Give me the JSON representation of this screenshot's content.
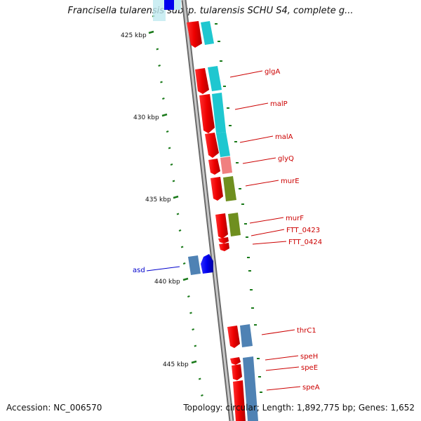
{
  "title": "Francisella tularensis subsp. tularensis SCHU S4, complete g...",
  "footer": {
    "accession": "Accession: NC_006570",
    "topology": "Topology: circular; Length: 1,892,775 bp; Genes: 1,652"
  },
  "colors": {
    "backbone": "#8a8a8a",
    "tick": "#1a7a1a",
    "cds_forward": "#ee0000",
    "cds_reverse": "#0000ee",
    "label_forward": "#cc0000",
    "label_reverse": "#0000cc",
    "cog_cyan": "#1fc7d0",
    "cog_light_cyan": "#bfeaf0",
    "cog_pink": "#f08080",
    "cog_olive": "#6f8f1f",
    "cog_steel": "#4f82b4"
  },
  "scale": {
    "unit": "kbp",
    "major_ticks": [
      {
        "kbp": 425,
        "label": "425 kbp"
      },
      {
        "kbp": 430,
        "label": "430 kbp"
      },
      {
        "kbp": 435,
        "label": "435 kbp"
      },
      {
        "kbp": 440,
        "label": "440 kbp"
      },
      {
        "kbp": 445,
        "label": "445 kbp"
      }
    ],
    "minor_step_kbp": 1
  },
  "genes": [
    {
      "name": "glgA",
      "strand": "+"
    },
    {
      "name": "malP",
      "strand": "+"
    },
    {
      "name": "malA",
      "strand": "+"
    },
    {
      "name": "glyQ",
      "strand": "+"
    },
    {
      "name": "murE",
      "strand": "+"
    },
    {
      "name": "murF",
      "strand": "+"
    },
    {
      "name": "FTT_0423",
      "strand": "+"
    },
    {
      "name": "FTT_0424",
      "strand": "+"
    },
    {
      "name": "asd",
      "strand": "-"
    },
    {
      "name": "thrC1",
      "strand": "+"
    },
    {
      "name": "speH",
      "strand": "+"
    },
    {
      "name": "speE",
      "strand": "+"
    },
    {
      "name": "speA",
      "strand": "+"
    }
  ]
}
